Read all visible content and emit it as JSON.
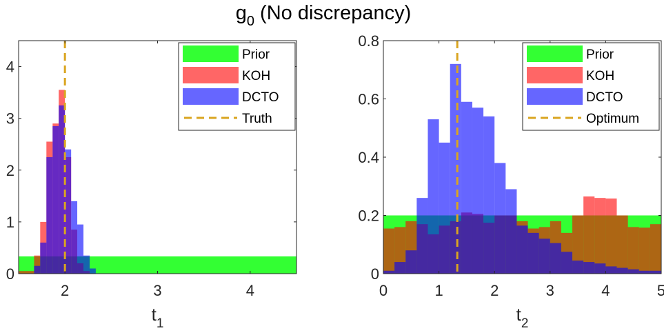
{
  "figure": {
    "title": "g",
    "title_sub": "0",
    "title_rest": " (No discrepancy)"
  },
  "colors": {
    "prior": "#00ff00",
    "koh": "#ff0000",
    "dcto": "#0000ff",
    "reference_line": "#daa520"
  },
  "chart_data": [
    {
      "type": "bar",
      "subtype": "histogram",
      "xlabel": "t",
      "xlabel_sub": "1",
      "ylabel": "",
      "xlim": [
        1.5,
        4.5
      ],
      "ylim": [
        0,
        4.5
      ],
      "xticks": [
        2,
        3,
        4
      ],
      "yticks": [
        0,
        1,
        2,
        3,
        4
      ],
      "legend": {
        "placement": "top-right",
        "entries": [
          "Prior",
          "KOH",
          "DCTO",
          "Truth"
        ]
      },
      "reference_line": {
        "name": "Truth",
        "x": 2.0
      },
      "series": [
        {
          "name": "Prior",
          "color": "#00ff00",
          "bins": [
            [
              1.5,
              4.5,
              0.333
            ]
          ]
        },
        {
          "name": "KOH",
          "color": "#ff0000",
          "bins": [
            [
              1.5,
              1.667,
              0.05
            ],
            [
              1.667,
              1.733,
              0.35
            ],
            [
              1.733,
              1.8,
              1.0
            ],
            [
              1.8,
              1.867,
              2.55
            ],
            [
              1.867,
              1.933,
              2.9
            ],
            [
              1.933,
              2.0,
              3.55
            ],
            [
              2.0,
              2.067,
              2.25
            ],
            [
              2.067,
              2.133,
              0.85
            ],
            [
              2.133,
              2.2,
              0.2
            ],
            [
              2.2,
              2.267,
              0.05
            ]
          ]
        },
        {
          "name": "DCTO",
          "color": "#0000ff",
          "bins": [
            [
              1.667,
              1.733,
              0.15
            ],
            [
              1.733,
              1.8,
              0.6
            ],
            [
              1.8,
              1.867,
              2.25
            ],
            [
              1.867,
              1.933,
              2.85
            ],
            [
              1.933,
              2.0,
              3.25
            ],
            [
              2.0,
              2.067,
              2.4
            ],
            [
              2.067,
              2.133,
              1.4
            ],
            [
              2.133,
              2.2,
              0.95
            ],
            [
              2.2,
              2.267,
              0.35
            ],
            [
              2.267,
              2.333,
              0.1
            ]
          ]
        }
      ]
    },
    {
      "type": "bar",
      "subtype": "histogram",
      "xlabel": "t",
      "xlabel_sub": "2",
      "ylabel": "",
      "xlim": [
        0,
        5
      ],
      "ylim": [
        0,
        0.8
      ],
      "xticks": [
        0,
        1,
        2,
        3,
        4,
        5
      ],
      "yticks": [
        0,
        0.2,
        0.4,
        0.6,
        0.8
      ],
      "legend": {
        "placement": "top-right",
        "entries": [
          "Prior",
          "KOH",
          "DCTO",
          "Optimum"
        ]
      },
      "reference_line": {
        "name": "Optimum",
        "x": 1.33
      },
      "series": [
        {
          "name": "Prior",
          "color": "#00ff00",
          "bins": [
            [
              0,
              5,
              0.2
            ]
          ]
        },
        {
          "name": "KOH",
          "color": "#ff0000",
          "bins": [
            [
              0,
              0.2,
              0.155
            ],
            [
              0.2,
              0.4,
              0.16
            ],
            [
              0.4,
              0.6,
              0.18
            ],
            [
              0.6,
              0.8,
              0.17
            ],
            [
              0.8,
              1.0,
              0.135
            ],
            [
              1.0,
              1.2,
              0.165
            ],
            [
              1.2,
              1.4,
              0.18
            ],
            [
              1.4,
              1.6,
              0.21
            ],
            [
              1.6,
              1.8,
              0.205
            ],
            [
              1.8,
              2.0,
              0.175
            ],
            [
              2.0,
              2.2,
              0.2
            ],
            [
              2.2,
              2.4,
              0.2
            ],
            [
              2.4,
              2.6,
              0.18
            ],
            [
              2.6,
              2.8,
              0.155
            ],
            [
              2.8,
              3.0,
              0.16
            ],
            [
              3.0,
              3.2,
              0.18
            ],
            [
              3.2,
              3.4,
              0.14
            ],
            [
              3.4,
              3.6,
              0.2
            ],
            [
              3.6,
              3.8,
              0.265
            ],
            [
              3.8,
              4.0,
              0.26
            ],
            [
              4.0,
              4.2,
              0.258
            ],
            [
              4.2,
              4.4,
              0.2
            ],
            [
              4.4,
              4.6,
              0.16
            ],
            [
              4.6,
              4.8,
              0.158
            ],
            [
              4.8,
              5.0,
              0.17
            ]
          ]
        },
        {
          "name": "DCTO",
          "color": "#0000ff",
          "bins": [
            [
              0,
              0.2,
              0.01
            ],
            [
              0.2,
              0.4,
              0.04
            ],
            [
              0.4,
              0.6,
              0.08
            ],
            [
              0.6,
              0.8,
              0.26
            ],
            [
              0.8,
              1.0,
              0.53
            ],
            [
              1.0,
              1.2,
              0.45
            ],
            [
              1.2,
              1.4,
              0.72
            ],
            [
              1.4,
              1.6,
              0.59
            ],
            [
              1.6,
              1.8,
              0.57
            ],
            [
              1.8,
              2.0,
              0.54
            ],
            [
              2.0,
              2.2,
              0.38
            ],
            [
              2.2,
              2.4,
              0.29
            ],
            [
              2.4,
              2.6,
              0.165
            ],
            [
              2.6,
              2.8,
              0.14
            ],
            [
              2.8,
              3.0,
              0.12
            ],
            [
              3.0,
              3.2,
              0.105
            ],
            [
              3.2,
              3.4,
              0.075
            ],
            [
              3.4,
              3.6,
              0.045
            ],
            [
              3.6,
              3.8,
              0.04
            ],
            [
              3.8,
              4.0,
              0.035
            ],
            [
              4.0,
              4.2,
              0.025
            ],
            [
              4.2,
              4.4,
              0.02
            ],
            [
              4.4,
              4.6,
              0.015
            ],
            [
              4.6,
              4.8,
              0.01
            ],
            [
              4.8,
              5.0,
              0.01
            ]
          ]
        }
      ]
    }
  ]
}
